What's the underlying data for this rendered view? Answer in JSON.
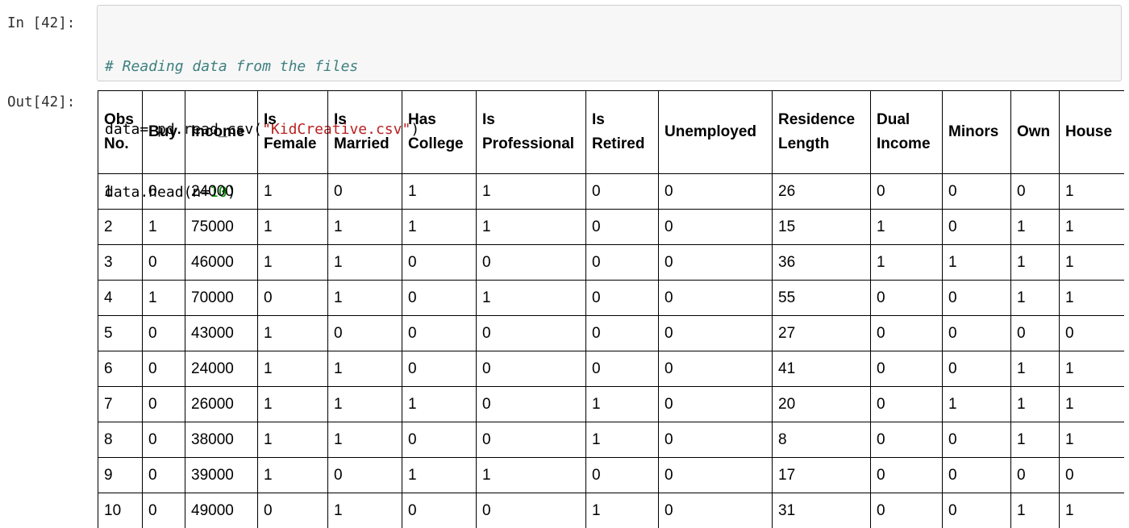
{
  "cells": {
    "input_prompt": "In [42]:",
    "output_prompt": "Out[42]:",
    "code": {
      "comment": "# Reading data from the files",
      "line2_a": "data= pd.read_csv(",
      "line2_str": "\"KidCreative.csv\"",
      "line2_b": ")",
      "line3_a": "data.head(n=",
      "line3_num": "10",
      "line3_b": ")"
    }
  },
  "table": {
    "headers": [
      "Obs No.",
      "Buy",
      "Income",
      "Is Female",
      "Is Married",
      "Has College",
      "Is Professional",
      "Is Retired",
      "Unemployed",
      "Residence Length",
      "Dual Income",
      "Minors",
      "Own",
      "House"
    ],
    "rows": [
      [
        "1",
        "0",
        "24000",
        "1",
        "0",
        "1",
        "1",
        "0",
        "0",
        "26",
        "0",
        "0",
        "0",
        "1"
      ],
      [
        "2",
        "1",
        "75000",
        "1",
        "1",
        "1",
        "1",
        "0",
        "0",
        "15",
        "1",
        "0",
        "1",
        "1"
      ],
      [
        "3",
        "0",
        "46000",
        "1",
        "1",
        "0",
        "0",
        "0",
        "0",
        "36",
        "1",
        "1",
        "1",
        "1"
      ],
      [
        "4",
        "1",
        "70000",
        "0",
        "1",
        "0",
        "1",
        "0",
        "0",
        "55",
        "0",
        "0",
        "1",
        "1"
      ],
      [
        "5",
        "0",
        "43000",
        "1",
        "0",
        "0",
        "0",
        "0",
        "0",
        "27",
        "0",
        "0",
        "0",
        "0"
      ],
      [
        "6",
        "0",
        "24000",
        "1",
        "1",
        "0",
        "0",
        "0",
        "0",
        "41",
        "0",
        "0",
        "1",
        "1"
      ],
      [
        "7",
        "0",
        "26000",
        "1",
        "1",
        "1",
        "0",
        "1",
        "0",
        "20",
        "0",
        "1",
        "1",
        "1"
      ],
      [
        "8",
        "0",
        "38000",
        "1",
        "1",
        "0",
        "0",
        "1",
        "0",
        "8",
        "0",
        "0",
        "1",
        "1"
      ],
      [
        "9",
        "0",
        "39000",
        "1",
        "0",
        "1",
        "1",
        "0",
        "0",
        "17",
        "0",
        "0",
        "0",
        "0"
      ],
      [
        "10",
        "0",
        "49000",
        "0",
        "1",
        "0",
        "0",
        "1",
        "0",
        "31",
        "0",
        "0",
        "1",
        "1"
      ]
    ]
  }
}
